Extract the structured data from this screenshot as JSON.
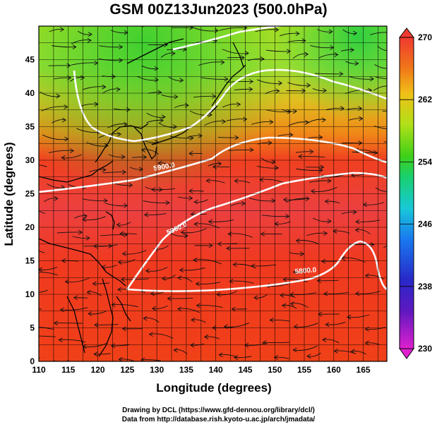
{
  "title": "GSM 00Z13Jun2023 (500.0hPa)",
  "axes": {
    "xlabel": "Longitude (degrees)",
    "ylabel": "Latitude  (degrees)",
    "xticks": [
      "110",
      "115",
      "120",
      "125",
      "130",
      "135",
      "140",
      "145",
      "150",
      "155",
      "160",
      "165"
    ],
    "yticks": [
      "0",
      "5",
      "10",
      "15",
      "20",
      "25",
      "30",
      "35",
      "40",
      "45"
    ],
    "xlim": [
      110,
      169
    ],
    "ylim": [
      0,
      50
    ]
  },
  "colorbar": {
    "ticks": [
      "270",
      "262",
      "254",
      "246",
      "238",
      "230"
    ],
    "range": [
      230,
      270
    ],
    "colors": [
      "#e020d0",
      "#7018c0",
      "#2828c8",
      "#1a78f0",
      "#18c8d8",
      "#18d070",
      "#40d018",
      "#b0e018",
      "#f0c018",
      "#f07818",
      "#f03018",
      "#e83040"
    ]
  },
  "contours": [
    {
      "label": "5800.0"
    },
    {
      "label": "5900.0"
    },
    {
      "label": "5900.0"
    }
  ],
  "credits": {
    "line1": "Drawing by DCL (https://www.gfd-dennou.org/library/dcl/)",
    "line2": "Data from http://database.rish.kyoto-u.ac.jp/arch/jmadata/"
  }
}
